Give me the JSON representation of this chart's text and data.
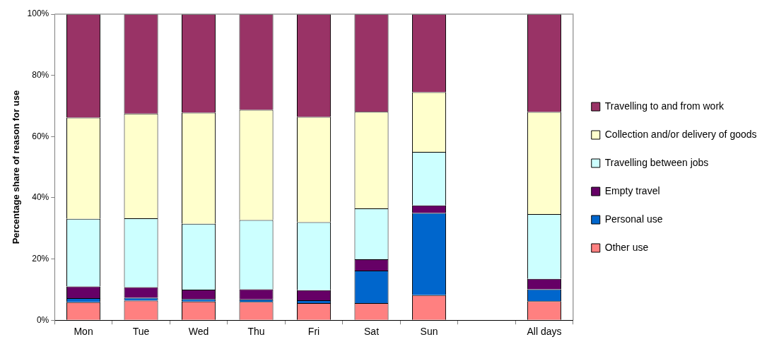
{
  "chart_data": {
    "type": "bar",
    "stacked": true,
    "ylabel": "Percentage share of reason for use",
    "categories": [
      "Mon",
      "Tue",
      "Wed",
      "Thu",
      "Fri",
      "Sat",
      "Sun",
      null,
      "All days"
    ],
    "series": [
      {
        "name": "Other use",
        "color": "#ff8080",
        "values": [
          5.9,
          6.4,
          6.1,
          6.0,
          5.6,
          5.6,
          8.2,
          null,
          6.2
        ]
      },
      {
        "name": "Personal use",
        "color": "#0066cc",
        "values": [
          1.3,
          0.9,
          0.8,
          0.8,
          0.9,
          10.6,
          26.8,
          null,
          3.9
        ]
      },
      {
        "name": "Empty travel",
        "color": "#660066",
        "values": [
          3.8,
          3.5,
          3.1,
          3.3,
          3.3,
          3.7,
          2.5,
          null,
          3.4
        ]
      },
      {
        "name": "Travelling between jobs",
        "color": "#ccffff",
        "values": [
          22.1,
          22.5,
          21.5,
          22.6,
          22.2,
          16.6,
          17.5,
          null,
          21.2
        ]
      },
      {
        "name": "Collection and/or delivery of goods",
        "color": "#ffffcc",
        "values": [
          33.1,
          34.2,
          36.3,
          36.0,
          34.4,
          31.6,
          19.5,
          null,
          33.3
        ]
      },
      {
        "name": "Travelling to and from work",
        "color": "#993366",
        "values": [
          33.8,
          32.5,
          32.2,
          31.3,
          33.6,
          31.9,
          25.5,
          null,
          32.0
        ]
      }
    ],
    "ylim": [
      0,
      100
    ],
    "yticks": [
      {
        "value": 0,
        "label": "0%"
      },
      {
        "value": 20,
        "label": "20%"
      },
      {
        "value": 40,
        "label": "40%"
      },
      {
        "value": 60,
        "label": "60%"
      },
      {
        "value": 80,
        "label": "80%"
      },
      {
        "value": 100,
        "label": "100%"
      }
    ],
    "grid": false,
    "legend": "right"
  }
}
